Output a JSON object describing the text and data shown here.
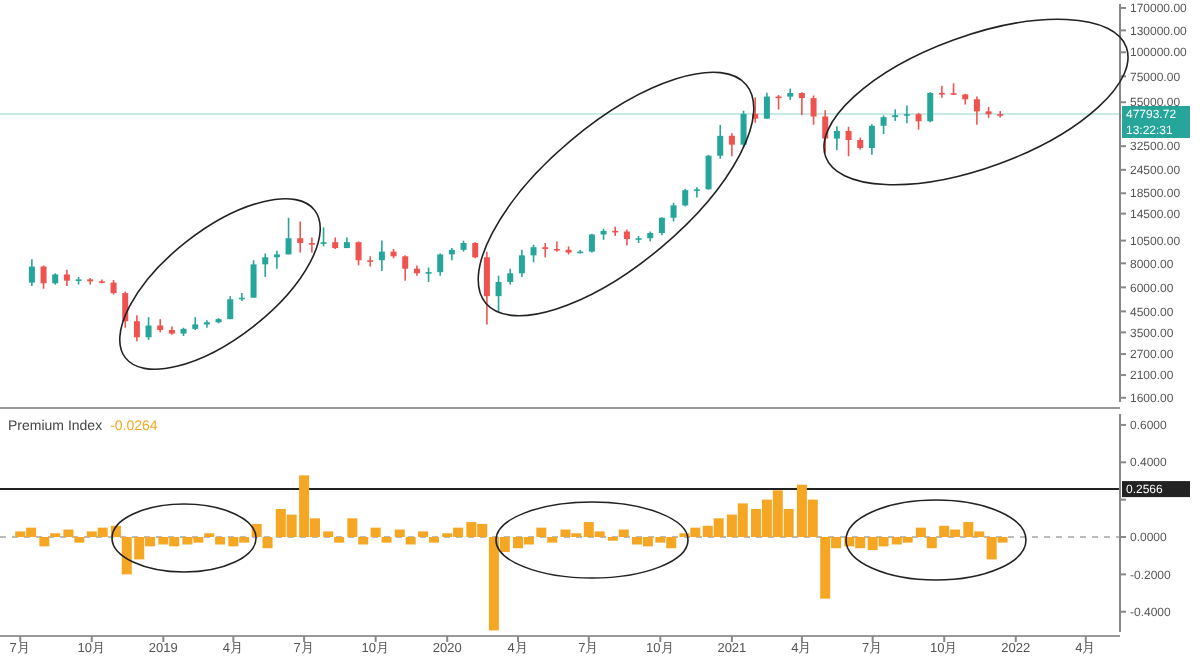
{
  "chart_data": [
    {
      "type": "candlestick",
      "log": true,
      "tick_labels": "y",
      "x": [
        "2018-07-16",
        "2018-07-31",
        "2018-08-15",
        "2018-08-30",
        "2018-09-14",
        "2018-09-29",
        "2018-10-14",
        "2018-10-29",
        "2018-11-13",
        "2018-11-28",
        "2018-12-13",
        "2018-12-28",
        "2019-01-12",
        "2019-01-27",
        "2019-02-11",
        "2019-02-26",
        "2019-03-13",
        "2019-03-28",
        "2019-04-12",
        "2019-04-27",
        "2019-05-12",
        "2019-05-27",
        "2019-06-11",
        "2019-06-26",
        "2019-07-11",
        "2019-07-26",
        "2019-08-10",
        "2019-08-25",
        "2019-09-09",
        "2019-09-24",
        "2019-10-09",
        "2019-10-24",
        "2019-11-08",
        "2019-11-23",
        "2019-12-08",
        "2019-12-23",
        "2020-01-07",
        "2020-01-22",
        "2020-02-06",
        "2020-02-21",
        "2020-03-07",
        "2020-03-22",
        "2020-04-06",
        "2020-04-21",
        "2020-05-06",
        "2020-05-21",
        "2020-06-05",
        "2020-06-20",
        "2020-07-05",
        "2020-07-20",
        "2020-08-04",
        "2020-08-19",
        "2020-09-03",
        "2020-09-18",
        "2020-10-03",
        "2020-10-18",
        "2020-11-02",
        "2020-11-17",
        "2020-12-02",
        "2020-12-17",
        "2021-01-01",
        "2021-01-16",
        "2021-01-31",
        "2021-02-15",
        "2021-03-02",
        "2021-03-17",
        "2021-04-01",
        "2021-04-16",
        "2021-05-01",
        "2021-05-16",
        "2021-05-31",
        "2021-06-15",
        "2021-06-30",
        "2021-07-15",
        "2021-07-30",
        "2021-08-14",
        "2021-08-29",
        "2021-09-13",
        "2021-09-28",
        "2021-10-13",
        "2021-10-28",
        "2021-11-12",
        "2021-11-27",
        "2021-12-12"
      ],
      "ohlc": [
        [
          6350,
          8400,
          6100,
          7700
        ],
        [
          7700,
          7800,
          5900,
          6300
        ],
        [
          6300,
          7100,
          6200,
          7000
        ],
        [
          7000,
          7400,
          6100,
          6500
        ],
        [
          6500,
          6800,
          6200,
          6600
        ],
        [
          6600,
          6700,
          6200,
          6450
        ],
        [
          6450,
          6600,
          6300,
          6350
        ],
        [
          6350,
          6550,
          5500,
          5600
        ],
        [
          5600,
          5700,
          3700,
          4000
        ],
        [
          4000,
          4300,
          3150,
          3300
        ],
        [
          3300,
          4200,
          3200,
          3800
        ],
        [
          3800,
          4100,
          3500,
          3600
        ],
        [
          3600,
          3750,
          3400,
          3450
        ],
        [
          3450,
          3700,
          3350,
          3650
        ],
        [
          3650,
          4200,
          3600,
          3850
        ],
        [
          3850,
          4050,
          3700,
          3950
        ],
        [
          3950,
          4150,
          3900,
          4100
        ],
        [
          4100,
          5400,
          4100,
          5200
        ],
        [
          5200,
          5600,
          5100,
          5300
        ],
        [
          5300,
          8300,
          5300,
          7900
        ],
        [
          7900,
          9000,
          6800,
          8600
        ],
        [
          8600,
          9300,
          7500,
          8900
        ],
        [
          8900,
          13800,
          8900,
          10800
        ],
        [
          10800,
          13200,
          9100,
          10200
        ],
        [
          10200,
          10900,
          9100,
          10100
        ],
        [
          10100,
          12300,
          9800,
          10300
        ],
        [
          10300,
          10900,
          9500,
          9600
        ],
        [
          9600,
          10900,
          9600,
          10300
        ],
        [
          10300,
          10400,
          7800,
          8300
        ],
        [
          8300,
          8700,
          7700,
          8300
        ],
        [
          8300,
          10500,
          7300,
          9200
        ],
        [
          9200,
          9500,
          8500,
          8700
        ],
        [
          8700,
          8800,
          6500,
          7500
        ],
        [
          7500,
          7800,
          6900,
          7100
        ],
        [
          7100,
          7600,
          6400,
          7200
        ],
        [
          7200,
          9000,
          6900,
          8900
        ],
        [
          8900,
          9600,
          8300,
          9400
        ],
        [
          9400,
          10500,
          9200,
          10200
        ],
        [
          10200,
          10300,
          8500,
          8600
        ],
        [
          8600,
          9200,
          3850,
          5400
        ],
        [
          5400,
          6900,
          4500,
          6400
        ],
        [
          6400,
          7500,
          6200,
          7100
        ],
        [
          7100,
          9400,
          6800,
          8800
        ],
        [
          8800,
          10000,
          8100,
          9700
        ],
        [
          9700,
          10200,
          8600,
          9500
        ],
        [
          9500,
          10400,
          9200,
          9400
        ],
        [
          9400,
          9800,
          8900,
          9100
        ],
        [
          9100,
          9400,
          9000,
          9200
        ],
        [
          9200,
          11400,
          9100,
          11300
        ],
        [
          11300,
          12100,
          10600,
          11800
        ],
        [
          11800,
          12400,
          11100,
          11700
        ],
        [
          11700,
          12000,
          9900,
          10700
        ],
        [
          10700,
          11100,
          10200,
          10800
        ],
        [
          10800,
          11700,
          10400,
          11500
        ],
        [
          11500,
          13900,
          11200,
          13800
        ],
        [
          13800,
          16500,
          13200,
          16000
        ],
        [
          16000,
          19500,
          15800,
          19200
        ],
        [
          19200,
          19900,
          17600,
          19400
        ],
        [
          19400,
          29300,
          19300,
          29000
        ],
        [
          29000,
          41900,
          28000,
          36800
        ],
        [
          36800,
          38000,
          28800,
          33100
        ],
        [
          33100,
          49700,
          32300,
          47900
        ],
        [
          47900,
          58300,
          43000,
          45200
        ],
        [
          45200,
          61700,
          45000,
          58900
        ],
        [
          58900,
          60000,
          50400,
          58800
        ],
        [
          58800,
          64800,
          56500,
          61400
        ],
        [
          61400,
          62000,
          47100,
          57800
        ],
        [
          57800,
          59600,
          42000,
          46400
        ],
        [
          46400,
          50000,
          30000,
          35600
        ],
        [
          35600,
          41300,
          31000,
          39000
        ],
        [
          39000,
          41000,
          28800,
          35000
        ],
        [
          35000,
          36000,
          31200,
          31800
        ],
        [
          31800,
          42300,
          29300,
          41500
        ],
        [
          41500,
          47000,
          37600,
          46000
        ],
        [
          46000,
          50500,
          44000,
          47100
        ],
        [
          47100,
          52900,
          42800,
          47700
        ],
        [
          47700,
          48500,
          39600,
          43800
        ],
        [
          43800,
          62000,
          43300,
          61500
        ],
        [
          61500,
          67000,
          58000,
          61300
        ],
        [
          61300,
          69000,
          60000,
          60400
        ],
        [
          60400,
          60800,
          53500,
          57000
        ],
        [
          57000,
          59000,
          42000,
          49300
        ],
        [
          49300,
          52000,
          45600,
          47700
        ],
        [
          47700,
          49500,
          45800,
          47500
        ]
      ],
      "colors": [
        "#26a69a",
        "#ef5350",
        "#26a69a",
        "#ef5350",
        "#26a69a",
        "#ef5350",
        "#ef5350",
        "#ef5350",
        "#ef5350",
        "#ef5350",
        "#26a69a",
        "#ef5350",
        "#ef5350",
        "#26a69a",
        "#26a69a",
        "#26a69a",
        "#26a69a",
        "#26a69a",
        "#26a69a",
        "#26a69a",
        "#26a69a",
        "#26a69a",
        "#26a69a",
        "#ef5350",
        "#ef5350",
        "#26a69a",
        "#ef5350",
        "#26a69a",
        "#ef5350",
        "#ef5350",
        "#26a69a",
        "#ef5350",
        "#ef5350",
        "#ef5350",
        "#26a69a",
        "#26a69a",
        "#26a69a",
        "#26a69a",
        "#ef5350",
        "#ef5350",
        "#26a69a",
        "#26a69a",
        "#26a69a",
        "#26a69a",
        "#ef5350",
        "#ef5350",
        "#ef5350",
        "#26a69a",
        "#26a69a",
        "#26a69a",
        "#ef5350",
        "#ef5350",
        "#26a69a",
        "#26a69a",
        "#26a69a",
        "#26a69a",
        "#26a69a",
        "#26a69a",
        "#26a69a",
        "#26a69a",
        "#ef5350",
        "#26a69a",
        "#ef5350",
        "#26a69a",
        "#ef5350",
        "#26a69a",
        "#ef5350",
        "#ef5350",
        "#ef5350",
        "#26a69a",
        "#ef5350",
        "#ef5350",
        "#26a69a",
        "#26a69a",
        "#26a69a",
        "#26a69a",
        "#ef5350",
        "#26a69a",
        "#ef5350",
        "#ef5350",
        "#ef5350",
        "#ef5350",
        "#ef5350",
        "#ef5350"
      ],
      "xlim": [
        "2018-06-05",
        "2022-05-15"
      ],
      "ylim": [
        1450,
        187000
      ],
      "yticks": [
        {
          "value": 1600,
          "label": "1600.00"
        },
        {
          "value": 2100,
          "label": "2100.00"
        },
        {
          "value": 2700,
          "label": "2700.00"
        },
        {
          "value": 3500,
          "label": "3500.00"
        },
        {
          "value": 4500,
          "label": "4500.00"
        },
        {
          "value": 6000,
          "label": "6000.00"
        },
        {
          "value": 8000,
          "label": "8000.00"
        },
        {
          "value": 10500,
          "label": "10500.00"
        },
        {
          "value": 14500,
          "label": "14500.00"
        },
        {
          "value": 18500,
          "label": "18500.00"
        },
        {
          "value": 24500,
          "label": "24500.00"
        },
        {
          "value": 32500,
          "label": "32500.00"
        },
        {
          "value": 55000,
          "label": "55000.00"
        },
        {
          "value": 75000,
          "label": "75000.00"
        },
        {
          "value": 100000,
          "label": "100000.00"
        },
        {
          "value": 130000,
          "label": "130000.00"
        },
        {
          "value": 170000,
          "label": "170000.00"
        }
      ],
      "ref_lines": [
        {
          "axis": "y",
          "value": 47793.72,
          "label": "47793.72",
          "color": "#26a69a",
          "line_style": "solid"
        }
      ],
      "annotations": [
        "13:22:31"
      ]
    },
    {
      "type": "bar",
      "title": "Premium Index",
      "annotations": [
        "-0.0264"
      ],
      "color": "#f5a623",
      "x": [
        "2018-07-01",
        "2018-07-15",
        "2018-08-01",
        "2018-08-15",
        "2018-09-01",
        "2018-09-15",
        "2018-10-01",
        "2018-10-15",
        "2018-11-01",
        "2018-11-15",
        "2018-12-01",
        "2018-12-15",
        "2019-01-01",
        "2019-01-15",
        "2019-02-01",
        "2019-02-15",
        "2019-03-01",
        "2019-03-15",
        "2019-04-01",
        "2019-04-15",
        "2019-05-01",
        "2019-05-15",
        "2019-06-01",
        "2019-06-15",
        "2019-07-01",
        "2019-07-15",
        "2019-08-01",
        "2019-08-15",
        "2019-09-01",
        "2019-09-15",
        "2019-10-01",
        "2019-10-15",
        "2019-11-01",
        "2019-11-15",
        "2019-12-01",
        "2019-12-15",
        "2020-01-01",
        "2020-01-15",
        "2020-02-01",
        "2020-02-15",
        "2020-03-01",
        "2020-03-15",
        "2020-04-01",
        "2020-04-15",
        "2020-05-01",
        "2020-05-15",
        "2020-06-01",
        "2020-06-15",
        "2020-07-01",
        "2020-07-15",
        "2020-08-01",
        "2020-08-15",
        "2020-09-01",
        "2020-09-15",
        "2020-10-01",
        "2020-10-15",
        "2020-11-01",
        "2020-11-15",
        "2020-12-01",
        "2020-12-15",
        "2021-01-01",
        "2021-01-15",
        "2021-02-01",
        "2021-02-15",
        "2021-03-01",
        "2021-03-15",
        "2021-04-01",
        "2021-04-15",
        "2021-05-01",
        "2021-05-15",
        "2021-06-01",
        "2021-06-15",
        "2021-07-01",
        "2021-07-15",
        "2021-08-01",
        "2021-08-15",
        "2021-09-01",
        "2021-09-15",
        "2021-10-01",
        "2021-10-15",
        "2021-11-01",
        "2021-11-15",
        "2021-12-01",
        "2021-12-15"
      ],
      "values": [
        0.03,
        0.05,
        -0.05,
        0.02,
        0.04,
        -0.03,
        0.03,
        0.05,
        0.06,
        -0.2,
        -0.12,
        -0.05,
        -0.04,
        -0.05,
        -0.04,
        -0.03,
        0.02,
        -0.04,
        -0.05,
        -0.03,
        0.07,
        -0.06,
        0.15,
        0.12,
        0.33,
        0.1,
        0.03,
        -0.03,
        0.1,
        -0.04,
        0.05,
        -0.03,
        0.04,
        -0.04,
        0.03,
        -0.03,
        0.02,
        0.05,
        0.08,
        0.07,
        -0.5,
        -0.08,
        -0.06,
        -0.04,
        0.05,
        -0.03,
        0.04,
        0.02,
        0.08,
        0.03,
        -0.02,
        0.04,
        -0.04,
        -0.05,
        -0.03,
        -0.06,
        0.02,
        0.05,
        0.06,
        0.1,
        0.12,
        0.18,
        0.15,
        0.2,
        0.25,
        0.15,
        0.28,
        0.2,
        -0.33,
        -0.06,
        -0.05,
        -0.06,
        -0.07,
        -0.05,
        -0.04,
        -0.03,
        0.05,
        -0.06,
        0.06,
        0.04,
        0.08,
        0.03,
        -0.12,
        -0.03
      ],
      "xlim": [
        "2018-06-05",
        "2022-05-15"
      ],
      "xticks": [
        {
          "value": "2018-07-01",
          "label": "7月"
        },
        {
          "value": "2018-10-01",
          "label": "10月"
        },
        {
          "value": "2019-01-01",
          "label": "2019"
        },
        {
          "value": "2019-04-01",
          "label": "4月"
        },
        {
          "value": "2019-07-01",
          "label": "7月"
        },
        {
          "value": "2019-10-01",
          "label": "10月"
        },
        {
          "value": "2020-01-01",
          "label": "2020"
        },
        {
          "value": "2020-04-01",
          "label": "4月"
        },
        {
          "value": "2020-07-01",
          "label": "7月"
        },
        {
          "value": "2020-10-01",
          "label": "10月"
        },
        {
          "value": "2021-01-01",
          "label": "2021"
        },
        {
          "value": "2021-04-01",
          "label": "4月"
        },
        {
          "value": "2021-07-01",
          "label": "7月"
        },
        {
          "value": "2021-10-01",
          "label": "10月"
        },
        {
          "value": "2022-01-01",
          "label": "2022"
        },
        {
          "value": "2022-04-01",
          "label": "4月"
        }
      ],
      "ylim": [
        -0.53,
        0.68
      ],
      "yticks": [
        {
          "value": -0.4,
          "label": "-0.4000"
        },
        {
          "value": -0.2,
          "label": "-0.2000"
        },
        {
          "value": 0,
          "label": "0.0000"
        },
        {
          "value": 0.2,
          "label": null
        },
        {
          "value": 0.4,
          "label": "0.4000"
        },
        {
          "value": 0.6,
          "label": "0.6000"
        }
      ],
      "ref_lines": [
        {
          "axis": "y",
          "value": 0.2566,
          "label": "0.2566",
          "color": "#222222",
          "line_style": "solid"
        },
        {
          "axis": "y",
          "value": 0,
          "color": "#bbbbbb",
          "line_style": "dashed"
        }
      ]
    }
  ]
}
